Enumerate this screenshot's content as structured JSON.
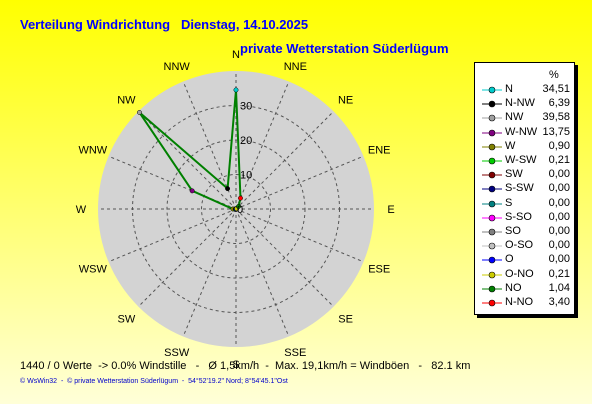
{
  "title": "Verteilung Windrichtung   Dienstag, 14.10.2025",
  "subtitle": "private Wetterstation Süderlügum",
  "stats_line": "1440 / 0 Werte  -> 0.0% Windstille   -   Ø 1,5km/h  -  Max. 19,1km/h = Windböen   -   82.1 km",
  "footer": "© WsWin32  -  © private Wetterstation Süderlügum  -  54°52'19.2\" Nord; 8°54'45.1\"Ost",
  "colors": {
    "line": "#008000",
    "disc": "#d3d3d3",
    "grid": "#555555",
    "title": "#0000ff"
  },
  "chart_data": {
    "type": "radar",
    "unit": "%",
    "rmax": 40,
    "rings": [
      10,
      20,
      30
    ],
    "ring_labels": [
      "10",
      "20",
      "30"
    ],
    "zero_label": "0",
    "axis_labels": [
      "N",
      "NNE",
      "NE",
      "ENE",
      "E",
      "ESE",
      "SE",
      "SSE",
      "S",
      "SSW",
      "SW",
      "WSW",
      "W",
      "WNW",
      "NW",
      "NNW"
    ],
    "axis_angles": [
      0,
      22.5,
      45,
      67.5,
      90,
      112.5,
      135,
      157.5,
      180,
      202.5,
      225,
      247.5,
      270,
      292.5,
      315,
      337.5
    ],
    "points": [
      {
        "angle": 0,
        "value": 34.51
      },
      {
        "angle": 337.5,
        "value": 6.39
      },
      {
        "angle": 315,
        "value": 39.58
      },
      {
        "angle": 292.5,
        "value": 13.75
      },
      {
        "angle": 270,
        "value": 0.9
      },
      {
        "angle": 247.5,
        "value": 0.21
      },
      {
        "angle": 225,
        "value": 0.0
      },
      {
        "angle": 202.5,
        "value": 0.0
      },
      {
        "angle": 180,
        "value": 0.0
      },
      {
        "angle": 157.5,
        "value": 0.0
      },
      {
        "angle": 135,
        "value": 0.0
      },
      {
        "angle": 112.5,
        "value": 0.0
      },
      {
        "angle": 90,
        "value": 0.0
      },
      {
        "angle": 67.5,
        "value": 0.21
      },
      {
        "angle": 45,
        "value": 1.04
      },
      {
        "angle": 22.5,
        "value": 3.4
      }
    ],
    "legend_unit": "%",
    "legend": [
      {
        "name": "N",
        "value": "34,51",
        "color": "#00cccc"
      },
      {
        "name": "N-NW",
        "value": "6,39",
        "color": "#000000"
      },
      {
        "name": "NW",
        "value": "39,58",
        "color": "#a0a0a0"
      },
      {
        "name": "W-NW",
        "value": "13,75",
        "color": "#800080"
      },
      {
        "name": "W",
        "value": "0,90",
        "color": "#808000"
      },
      {
        "name": "W-SW",
        "value": "0,21",
        "color": "#00cc00"
      },
      {
        "name": "SW",
        "value": "0,00",
        "color": "#800000"
      },
      {
        "name": "S-SW",
        "value": "0,00",
        "color": "#000080"
      },
      {
        "name": "S",
        "value": "0,00",
        "color": "#008080"
      },
      {
        "name": "S-SO",
        "value": "0,00",
        "color": "#ff00ff"
      },
      {
        "name": "SO",
        "value": "0,00",
        "color": "#808080"
      },
      {
        "name": "O-SO",
        "value": "0,00",
        "color": "#c0c0c0"
      },
      {
        "name": "O",
        "value": "0,00",
        "color": "#0000ff"
      },
      {
        "name": "O-NO",
        "value": "0,21",
        "color": "#cccc00"
      },
      {
        "name": "NO",
        "value": "1,04",
        "color": "#008000"
      },
      {
        "name": "N-NO",
        "value": "3,40",
        "color": "#ff0000"
      }
    ]
  }
}
